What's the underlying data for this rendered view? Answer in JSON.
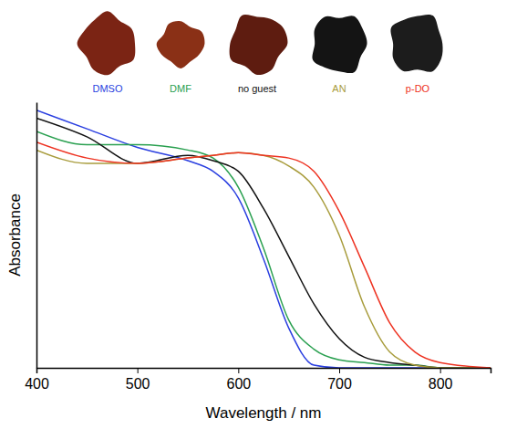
{
  "chart_data": {
    "type": "line",
    "x_label": "Wavelength / nm",
    "y_label": "Absorbance",
    "x": [
      400,
      450,
      500,
      550,
      575,
      600,
      625,
      650,
      675,
      700,
      725,
      750,
      775,
      800,
      850
    ],
    "xlim": [
      400,
      850
    ],
    "xticks": [
      400,
      500,
      600,
      700,
      800
    ],
    "ylim": [
      0,
      1
    ],
    "tick_labels": "x",
    "legend": "top",
    "series": [
      {
        "name": "DMSO",
        "color": "#2a3fe0",
        "values": [
          0.97,
          0.9,
          0.83,
          0.78,
          0.74,
          0.64,
          0.41,
          0.15,
          0.01,
          0,
          0,
          0,
          0,
          0,
          0
        ]
      },
      {
        "name": "DMF",
        "color": "#2aa050",
        "values": [
          0.89,
          0.84,
          0.84,
          0.82,
          0.79,
          0.68,
          0.45,
          0.18,
          0.07,
          0.03,
          0.02,
          0.01,
          0.01,
          0,
          0
        ]
      },
      {
        "name": "no guest",
        "color": "#111111",
        "values": [
          0.94,
          0.87,
          0.77,
          0.8,
          0.78,
          0.74,
          0.6,
          0.42,
          0.24,
          0.11,
          0.04,
          0.02,
          0.01,
          0,
          0
        ]
      },
      {
        "name": "AN",
        "color": "#a89c3c",
        "values": [
          0.82,
          0.77,
          0.77,
          0.79,
          0.8,
          0.81,
          0.8,
          0.76,
          0.68,
          0.5,
          0.23,
          0.06,
          0.01,
          0,
          0
        ]
      },
      {
        "name": "p-DO",
        "color": "#ee3322",
        "values": [
          0.85,
          0.79,
          0.77,
          0.79,
          0.8,
          0.81,
          0.8,
          0.79,
          0.74,
          0.59,
          0.38,
          0.17,
          0.06,
          0.02,
          0
        ]
      }
    ]
  }
}
